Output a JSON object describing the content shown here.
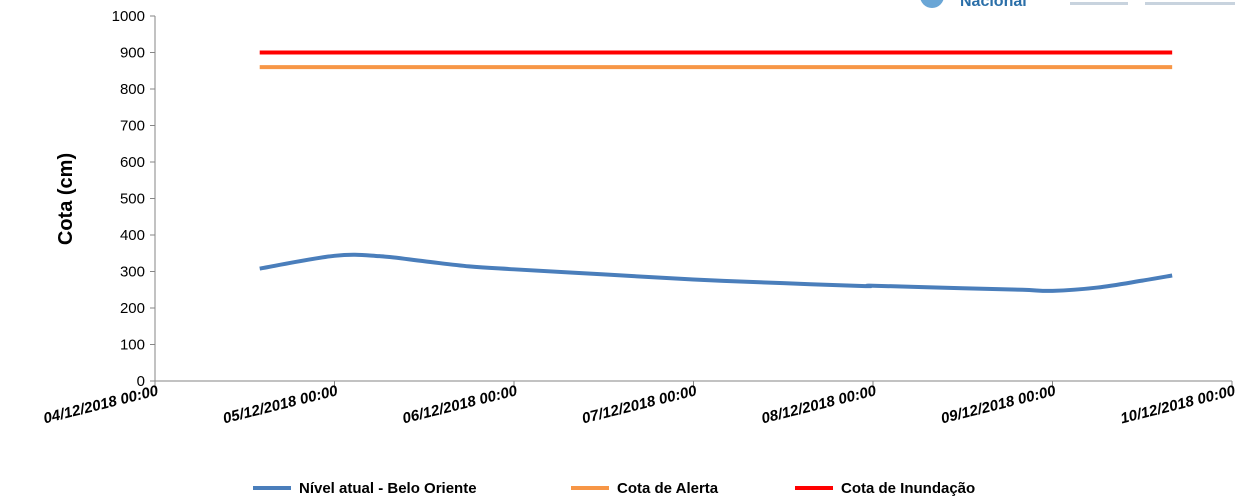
{
  "logo": {
    "text": "Nacional",
    "color": "#2b6fa8"
  },
  "chart_data": {
    "type": "line",
    "ylabel": "Cota (cm)",
    "xlabel": "",
    "ylim": [
      0,
      1000
    ],
    "yticks": [
      0,
      100,
      200,
      300,
      400,
      500,
      600,
      700,
      800,
      900,
      1000
    ],
    "xlim": [
      "04/12/2018 00:00",
      "10/12/2018 00:00"
    ],
    "xticks": [
      "04/12/2018 00:00",
      "05/12/2018 00:00",
      "06/12/2018 00:00",
      "07/12/2018 00:00",
      "08/12/2018 00:00",
      "09/12/2018 00:00",
      "10/12/2018 00:00"
    ],
    "grid": false,
    "legend_position": "bottom",
    "series": [
      {
        "name": "Nível atual - Belo Oriente",
        "color": "#4a7ebb",
        "points": [
          [
            "04/12/2018 14:00",
            308
          ],
          [
            "05/12/2018 00:00",
            343
          ],
          [
            "05/12/2018 06:00",
            342
          ],
          [
            "05/12/2018 12:00",
            328
          ],
          [
            "05/12/2018 18:00",
            314
          ],
          [
            "06/12/2018 00:00",
            306
          ],
          [
            "06/12/2018 12:00",
            292
          ],
          [
            "07/12/2018 00:00",
            278
          ],
          [
            "07/12/2018 12:00",
            268
          ],
          [
            "07/12/2018 23:00",
            260
          ],
          [
            "08/12/2018 00:00",
            261
          ],
          [
            "08/12/2018 12:00",
            254
          ],
          [
            "08/12/2018 20:00",
            250
          ],
          [
            "09/12/2018 00:00",
            247
          ],
          [
            "09/12/2018 06:00",
            256
          ],
          [
            "09/12/2018 12:00",
            275
          ],
          [
            "09/12/2018 16:00",
            289
          ]
        ]
      },
      {
        "name": "Cota de Alerta",
        "color": "#f79646",
        "points": [
          [
            "04/12/2018 14:00",
            860
          ],
          [
            "09/12/2018 16:00",
            860
          ]
        ]
      },
      {
        "name": "Cota de Inundação",
        "color": "#ff0000",
        "points": [
          [
            "04/12/2018 14:00",
            900
          ],
          [
            "09/12/2018 16:00",
            900
          ]
        ]
      }
    ]
  }
}
